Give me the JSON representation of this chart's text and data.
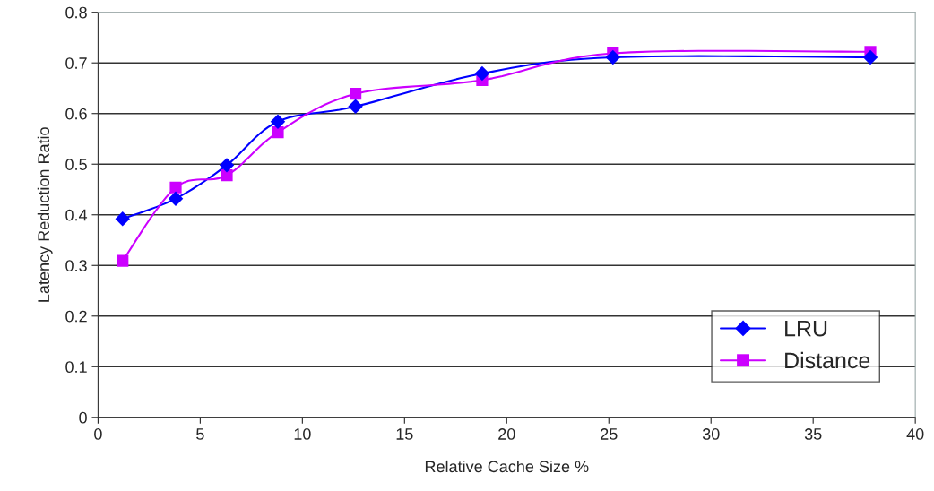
{
  "chart_data": {
    "type": "line",
    "xlabel": "Relative Cache Size %",
    "ylabel": "Latency Reduction Ratio",
    "x": [
      1.2,
      3.8,
      6.3,
      8.8,
      12.6,
      18.8,
      25.2,
      37.8
    ],
    "series": [
      {
        "name": "LRU",
        "color": "#0000ff",
        "marker": "diamond",
        "values": [
          0.392,
          0.432,
          0.498,
          0.584,
          0.614,
          0.679,
          0.711,
          0.711
        ]
      },
      {
        "name": "Distance",
        "color": "#cc00ff",
        "marker": "square",
        "values": [
          0.309,
          0.454,
          0.478,
          0.563,
          0.639,
          0.666,
          0.719,
          0.722
        ]
      }
    ],
    "xlim": [
      0,
      40
    ],
    "xticks": [
      0,
      5,
      10,
      15,
      20,
      25,
      30,
      35,
      40
    ],
    "ylim": [
      0,
      0.8
    ],
    "yticks": [
      0,
      0.1,
      0.2,
      0.3,
      0.4,
      0.5,
      0.6,
      0.7,
      0.8
    ],
    "grid": "y",
    "legend": "bottom right",
    "line_style": "solid"
  }
}
